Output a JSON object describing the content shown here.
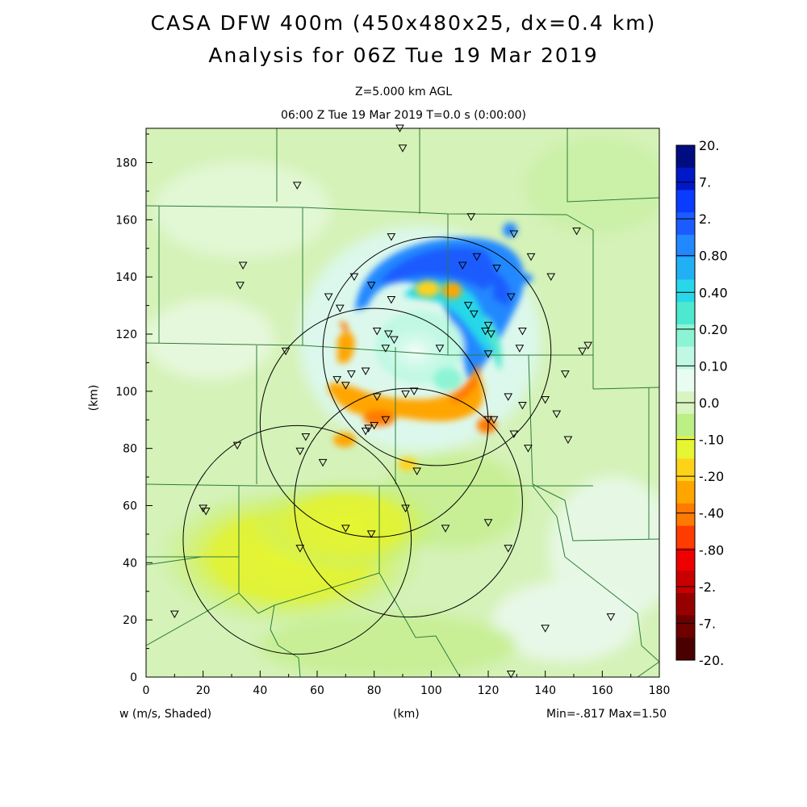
{
  "title_line1": "CASA DFW 400m (450x480x25, dx=0.4 km)",
  "title_line2": "Analysis for 06Z Tue 19 Mar 2019",
  "level_label": "Z=5.000 km AGL",
  "time_label": "06:00 Z Tue 19 Mar 2019    T=0.0 s (0:00:00)",
  "x_axis": {
    "label": "(km)",
    "ticks": [
      "0",
      "20",
      "40",
      "60",
      "80",
      "100",
      "120",
      "140",
      "160",
      "180"
    ],
    "range": [
      0,
      180
    ]
  },
  "y_axis": {
    "label": "(km)",
    "ticks": [
      "0",
      "20",
      "40",
      "60",
      "80",
      "100",
      "120",
      "140",
      "160",
      "180"
    ],
    "range": [
      0,
      192
    ]
  },
  "field_label": "w (m/s, Shaded)",
  "min_max_label": "Min=-.817 Max=1.50",
  "colorbar": {
    "labels": [
      "20.",
      "7.",
      "2.",
      "0.80",
      "0.40",
      "0.20",
      "0.10",
      "0.0",
      "-.10",
      "-.20",
      "-.40",
      "-.80",
      "-2.",
      "-7.",
      "-20."
    ],
    "colors": [
      "#000c80",
      "#0018c8",
      "#0a3cff",
      "#1c5cff",
      "#2288ff",
      "#22b0f5",
      "#28d8e8",
      "#4ee8d0",
      "#8cf4d4",
      "#c0f8e4",
      "#e8fcf2",
      "#d8f4c0",
      "#bcef86",
      "#e6f632",
      "#ffd21a",
      "#ffa500",
      "#ff7a00",
      "#ff3c00",
      "#ee0000",
      "#c80000",
      "#960000",
      "#6e0000",
      "#4a0000"
    ]
  },
  "radar_rings": [
    {
      "center": [
        53,
        48
      ],
      "radius": 40
    },
    {
      "center": [
        80,
        89
      ],
      "radius": 40
    },
    {
      "center": [
        102,
        114
      ],
      "radius": 40
    },
    {
      "center": [
        92,
        61
      ],
      "radius": 40
    }
  ],
  "stations": [
    [
      89,
      192
    ],
    [
      90,
      185
    ],
    [
      53,
      172
    ],
    [
      114,
      161
    ],
    [
      129,
      155
    ],
    [
      151,
      156
    ],
    [
      34,
      144
    ],
    [
      33,
      137
    ],
    [
      86,
      154
    ],
    [
      111,
      144
    ],
    [
      116,
      147
    ],
    [
      123,
      143
    ],
    [
      135,
      147
    ],
    [
      142,
      140
    ],
    [
      73,
      140
    ],
    [
      64,
      133
    ],
    [
      79,
      137
    ],
    [
      86,
      132
    ],
    [
      68,
      129
    ],
    [
      113,
      130
    ],
    [
      115,
      127
    ],
    [
      119,
      121
    ],
    [
      120,
      123
    ],
    [
      128,
      133
    ],
    [
      132,
      121
    ],
    [
      121,
      120
    ],
    [
      81,
      121
    ],
    [
      85,
      120
    ],
    [
      87,
      118
    ],
    [
      84,
      115
    ],
    [
      120,
      113
    ],
    [
      103,
      115
    ],
    [
      131,
      115
    ],
    [
      153,
      114
    ],
    [
      155,
      116
    ],
    [
      49,
      114
    ],
    [
      77,
      107
    ],
    [
      72,
      106
    ],
    [
      147,
      106
    ],
    [
      67,
      104
    ],
    [
      70,
      102
    ],
    [
      81,
      98
    ],
    [
      94,
      100
    ],
    [
      91,
      99
    ],
    [
      127,
      98
    ],
    [
      140,
      97
    ],
    [
      132,
      95
    ],
    [
      144,
      92
    ],
    [
      120,
      90
    ],
    [
      122,
      90
    ],
    [
      78,
      87
    ],
    [
      77,
      86
    ],
    [
      80,
      88
    ],
    [
      84,
      90
    ],
    [
      129,
      85
    ],
    [
      148,
      83
    ],
    [
      56,
      84
    ],
    [
      32,
      81
    ],
    [
      54,
      79
    ],
    [
      134,
      80
    ],
    [
      62,
      75
    ],
    [
      95,
      72
    ],
    [
      20,
      59
    ],
    [
      21,
      58
    ],
    [
      91,
      59
    ],
    [
      70,
      52
    ],
    [
      79,
      50
    ],
    [
      105,
      52
    ],
    [
      120,
      54
    ],
    [
      54,
      45
    ],
    [
      127,
      45
    ],
    [
      10,
      22
    ],
    [
      140,
      17
    ],
    [
      163,
      21
    ],
    [
      128,
      1
    ]
  ]
}
